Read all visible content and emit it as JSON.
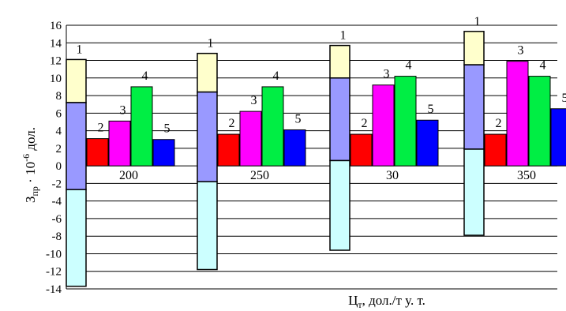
{
  "chart_data": {
    "type": "bar",
    "subtype": "stacked-and-grouped",
    "xlabel": "Ц_т, дол./т у. т.",
    "xlabel_main": "Ц",
    "xlabel_sub": "т",
    "xlabel_rest": ", дол./т у. т.",
    "ylabel": "З_пр · 10^-6 дол.",
    "ylabel_main": "З",
    "ylabel_sub": "пр",
    "ylabel_mid": " · 10",
    "ylabel_sup": "-6",
    "ylabel_rest": " дол.",
    "ylim": [
      -14,
      16
    ],
    "yticks": [
      16,
      14,
      12,
      10,
      8,
      6,
      4,
      2,
      0,
      -2,
      -4,
      -6,
      -8,
      -10,
      -12,
      -14
    ],
    "grid": "horizontal",
    "legend": "none",
    "categories": [
      "200",
      "250",
      "30",
      "350"
    ],
    "bar_labels": [
      "1",
      "2",
      "3",
      "4",
      "5"
    ],
    "bar1_segments": [
      {
        "name": "upper",
        "color": "#ffffcc",
        "values": [
          [
            7.2,
            12.1
          ],
          [
            8.4,
            12.8
          ],
          [
            10.0,
            13.7
          ],
          [
            11.5,
            15.3
          ]
        ]
      },
      {
        "name": "middle",
        "color": "#9999ff",
        "values": [
          [
            -2.7,
            7.2
          ],
          [
            -1.8,
            8.4
          ],
          [
            0.6,
            10.0
          ],
          [
            1.9,
            11.5
          ]
        ]
      },
      {
        "name": "lower",
        "color": "#ccffff",
        "values": [
          [
            -13.7,
            -2.7
          ],
          [
            -11.8,
            -1.8
          ],
          [
            -9.6,
            0.6
          ],
          [
            -7.9,
            1.9
          ]
        ]
      }
    ],
    "series": [
      {
        "name": "2",
        "color": "#ff0000",
        "values": [
          3.1,
          3.6,
          3.6,
          3.6
        ]
      },
      {
        "name": "3",
        "color": "#ff00ff",
        "values": [
          5.1,
          6.2,
          9.2,
          11.9
        ]
      },
      {
        "name": "4",
        "color": "#00ee44",
        "values": [
          9.0,
          9.0,
          10.2,
          10.2
        ]
      },
      {
        "name": "5",
        "color": "#0000ff",
        "values": [
          3.0,
          4.1,
          5.2,
          6.5
        ]
      }
    ]
  }
}
